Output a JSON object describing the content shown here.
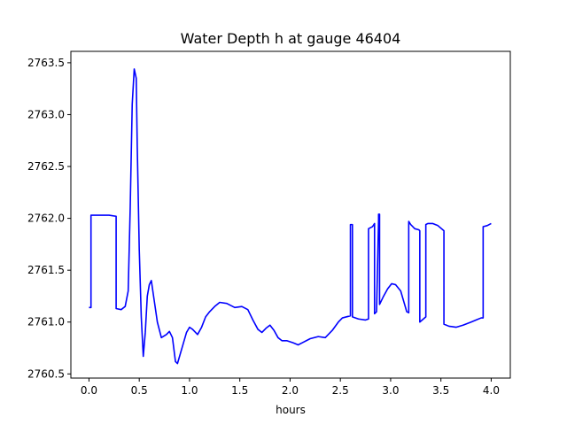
{
  "chart_data": {
    "type": "line",
    "title": "Water Depth h at gauge 46404",
    "xlabel": "hours",
    "ylabel": "",
    "xlim": [
      -0.18,
      4.19
    ],
    "ylim": [
      2760.46,
      2763.61
    ],
    "xticks": [
      0.0,
      0.5,
      1.0,
      1.5,
      2.0,
      2.5,
      3.0,
      3.5,
      4.0
    ],
    "xtick_labels": [
      "0.0",
      "0.5",
      "1.0",
      "1.5",
      "2.0",
      "2.5",
      "3.0",
      "3.5",
      "4.0"
    ],
    "yticks": [
      2760.5,
      2761.0,
      2761.5,
      2762.0,
      2762.5,
      2763.0,
      2763.5
    ],
    "ytick_labels": [
      "2760.5",
      "2761.0",
      "2761.5",
      "2762.0",
      "2762.5",
      "2763.0",
      "2763.5"
    ],
    "grid": false,
    "series": [
      {
        "color": "#0000ff",
        "x": [
          0.0,
          0.02,
          0.02,
          0.05,
          0.1,
          0.2,
          0.27,
          0.27,
          0.32,
          0.36,
          0.39,
          0.41,
          0.43,
          0.45,
          0.47,
          0.48,
          0.5,
          0.52,
          0.54,
          0.56,
          0.58,
          0.6,
          0.62,
          0.65,
          0.68,
          0.72,
          0.77,
          0.8,
          0.83,
          0.86,
          0.88,
          0.91,
          0.94,
          0.97,
          1.0,
          1.03,
          1.08,
          1.12,
          1.16,
          1.2,
          1.25,
          1.3,
          1.37,
          1.45,
          1.52,
          1.58,
          1.63,
          1.68,
          1.72,
          1.76,
          1.8,
          1.84,
          1.88,
          1.92,
          1.97,
          2.03,
          2.08,
          2.12,
          2.2,
          2.28,
          2.35,
          2.42,
          2.48,
          2.52,
          2.6,
          2.6,
          2.62,
          2.62,
          2.68,
          2.75,
          2.78,
          2.78,
          2.82,
          2.84,
          2.84,
          2.86,
          2.88,
          2.88,
          2.89,
          2.89,
          2.93,
          2.97,
          3.01,
          3.05,
          3.1,
          3.13,
          3.16,
          3.18,
          3.18,
          3.2,
          3.24,
          3.28,
          3.29,
          3.29,
          3.35,
          3.35,
          3.37,
          3.42,
          3.47,
          3.53,
          3.53,
          3.58,
          3.65,
          3.72,
          3.8,
          3.85,
          3.9,
          3.92,
          3.92,
          3.96,
          4.0
        ],
        "y": [
          2761.14,
          2761.14,
          2762.03,
          2762.03,
          2762.03,
          2762.03,
          2762.02,
          2761.13,
          2761.12,
          2761.15,
          2761.3,
          2762.1,
          2763.1,
          2763.44,
          2763.35,
          2762.7,
          2761.7,
          2761.05,
          2760.67,
          2760.9,
          2761.25,
          2761.36,
          2761.4,
          2761.2,
          2761.0,
          2760.85,
          2760.88,
          2760.91,
          2760.85,
          2760.62,
          2760.6,
          2760.7,
          2760.8,
          2760.9,
          2760.95,
          2760.93,
          2760.88,
          2760.95,
          2761.05,
          2761.1,
          2761.15,
          2761.19,
          2761.18,
          2761.14,
          2761.15,
          2761.12,
          2761.02,
          2760.93,
          2760.9,
          2760.94,
          2760.97,
          2760.92,
          2760.85,
          2760.82,
          2760.82,
          2760.8,
          2760.78,
          2760.8,
          2760.84,
          2760.86,
          2760.85,
          2760.92,
          2761.0,
          2761.04,
          2761.06,
          2761.94,
          2761.94,
          2761.05,
          2761.03,
          2761.02,
          2761.03,
          2761.9,
          2761.92,
          2761.95,
          2761.08,
          2761.1,
          2761.98,
          2762.04,
          2762.04,
          2761.17,
          2761.25,
          2761.32,
          2761.37,
          2761.36,
          2761.3,
          2761.2,
          2761.1,
          2761.09,
          2761.97,
          2761.94,
          2761.9,
          2761.89,
          2761.88,
          2761.0,
          2761.05,
          2761.94,
          2761.95,
          2761.95,
          2761.93,
          2761.88,
          2760.98,
          2760.96,
          2760.95,
          2760.97,
          2761.0,
          2761.02,
          2761.04,
          2761.04,
          2761.92,
          2761.93,
          2761.95
        ]
      }
    ]
  }
}
